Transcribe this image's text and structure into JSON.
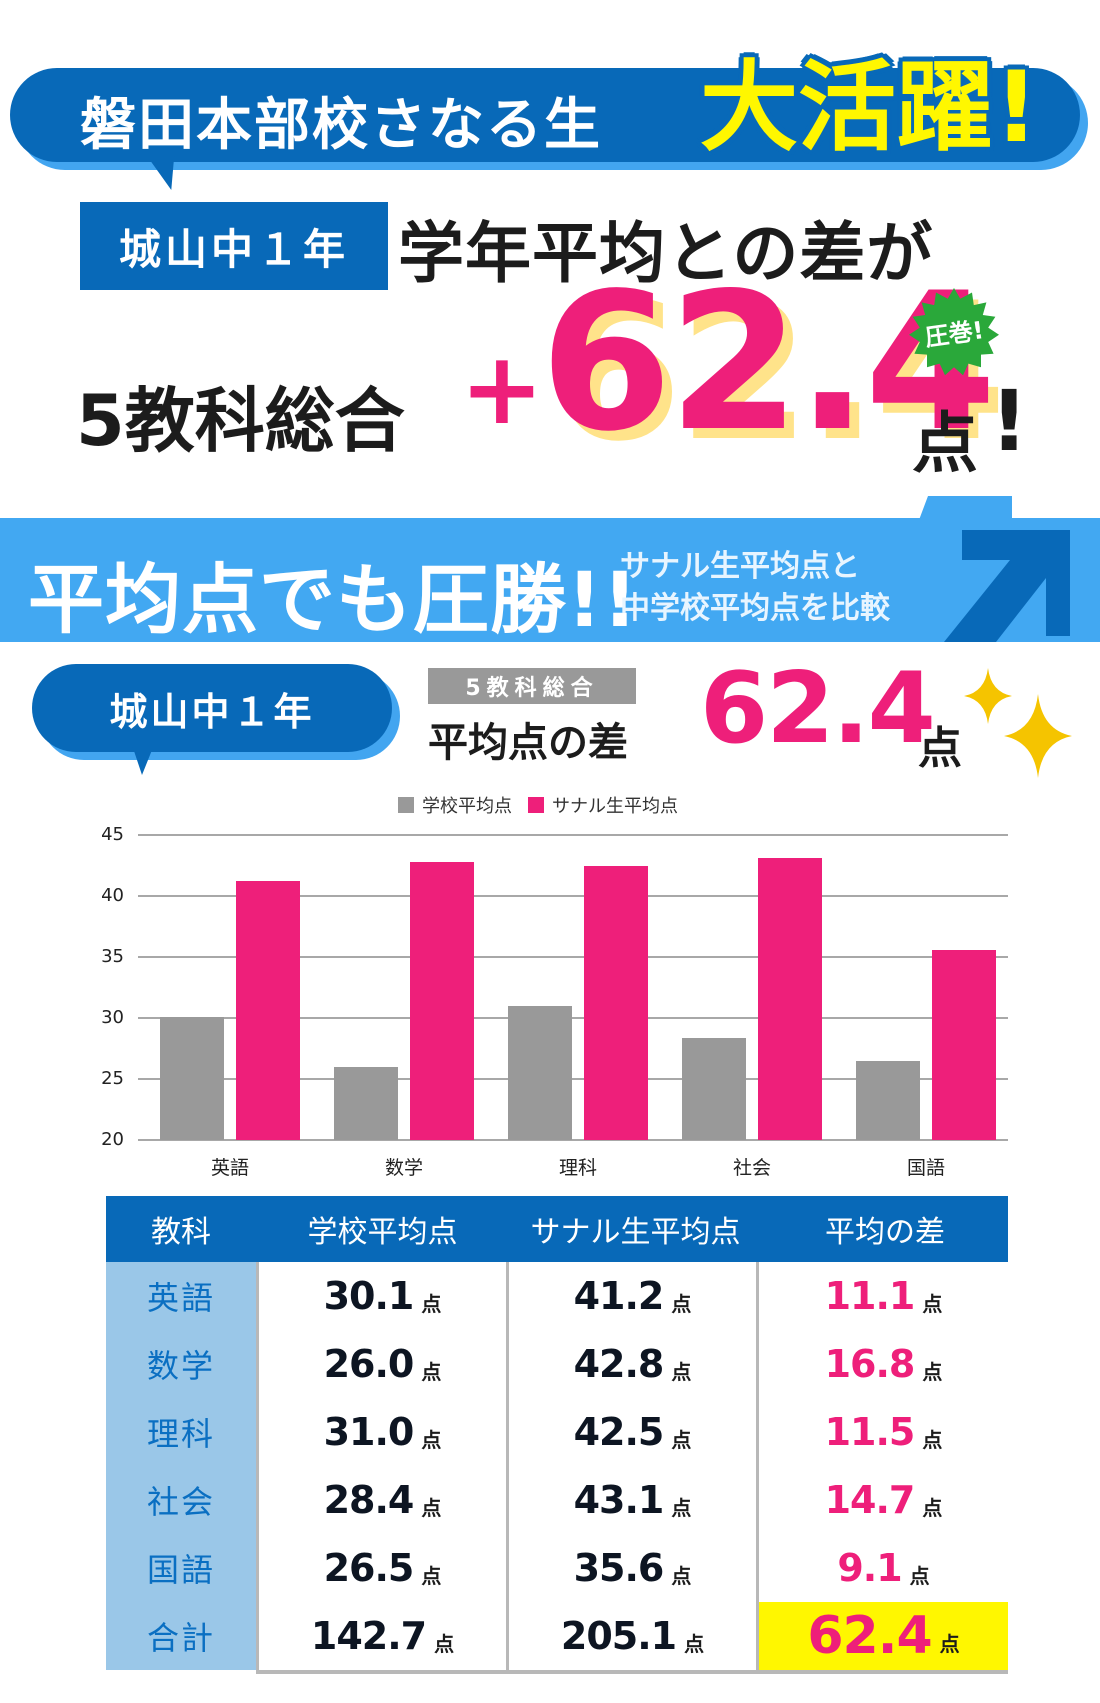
{
  "hero": {
    "title": "磐田本部校さなる生",
    "accent": "大活躍!"
  },
  "headline": {
    "grade_tag": "城山中１年",
    "line1": "学年平均との差が",
    "line2_label": "5教科総合",
    "plus": "+",
    "score": "62.4",
    "unit": "点",
    "exclaim": "!",
    "burst_label": "圧巻!"
  },
  "band": {
    "title": "平均点でも圧勝!!",
    "sub_line1": "サナル生平均点と",
    "sub_line2": "中学校平均点を比較"
  },
  "summary": {
    "grade": "城山中１年",
    "tag": "5教科総合",
    "label": "平均点の差",
    "score": "62.4",
    "unit": "点"
  },
  "colors": {
    "brand_blue": "#0869b8",
    "light_blue": "#42a8f2",
    "pink": "#ee1f7a",
    "gray": "#999999",
    "yellow": "#fff700",
    "green": "#2aa83a"
  },
  "chart_data": {
    "type": "bar",
    "title": "",
    "xlabel": "",
    "ylabel": "",
    "categories": [
      "英語",
      "数学",
      "理科",
      "社会",
      "国語"
    ],
    "series": [
      {
        "name": "学校平均点",
        "color": "#999999",
        "values": [
          30.1,
          26.0,
          31.0,
          28.4,
          26.5
        ]
      },
      {
        "name": "サナル生平均点",
        "color": "#ee1f7a",
        "values": [
          41.2,
          42.8,
          42.5,
          43.1,
          35.6
        ]
      }
    ],
    "ylim": [
      20,
      45
    ],
    "yticks": [
      45,
      40,
      35,
      30,
      25,
      20
    ],
    "grid": true,
    "legend_position": "top"
  },
  "table": {
    "headers": [
      "教科",
      "学校平均点",
      "サナル生平均点",
      "平均の差"
    ],
    "unit": "点",
    "rows": [
      {
        "subject": "英語",
        "school": "30.1",
        "sanaru": "41.2",
        "diff": "11.1"
      },
      {
        "subject": "数学",
        "school": "26.0",
        "sanaru": "42.8",
        "diff": "16.8"
      },
      {
        "subject": "理科",
        "school": "31.0",
        "sanaru": "42.5",
        "diff": "11.5"
      },
      {
        "subject": "社会",
        "school": "28.4",
        "sanaru": "43.1",
        "diff": "14.7"
      },
      {
        "subject": "国語",
        "school": "26.5",
        "sanaru": "35.6",
        "diff": "9.1"
      },
      {
        "subject": "合計",
        "school": "142.7",
        "sanaru": "205.1",
        "diff": "62.4"
      }
    ]
  }
}
